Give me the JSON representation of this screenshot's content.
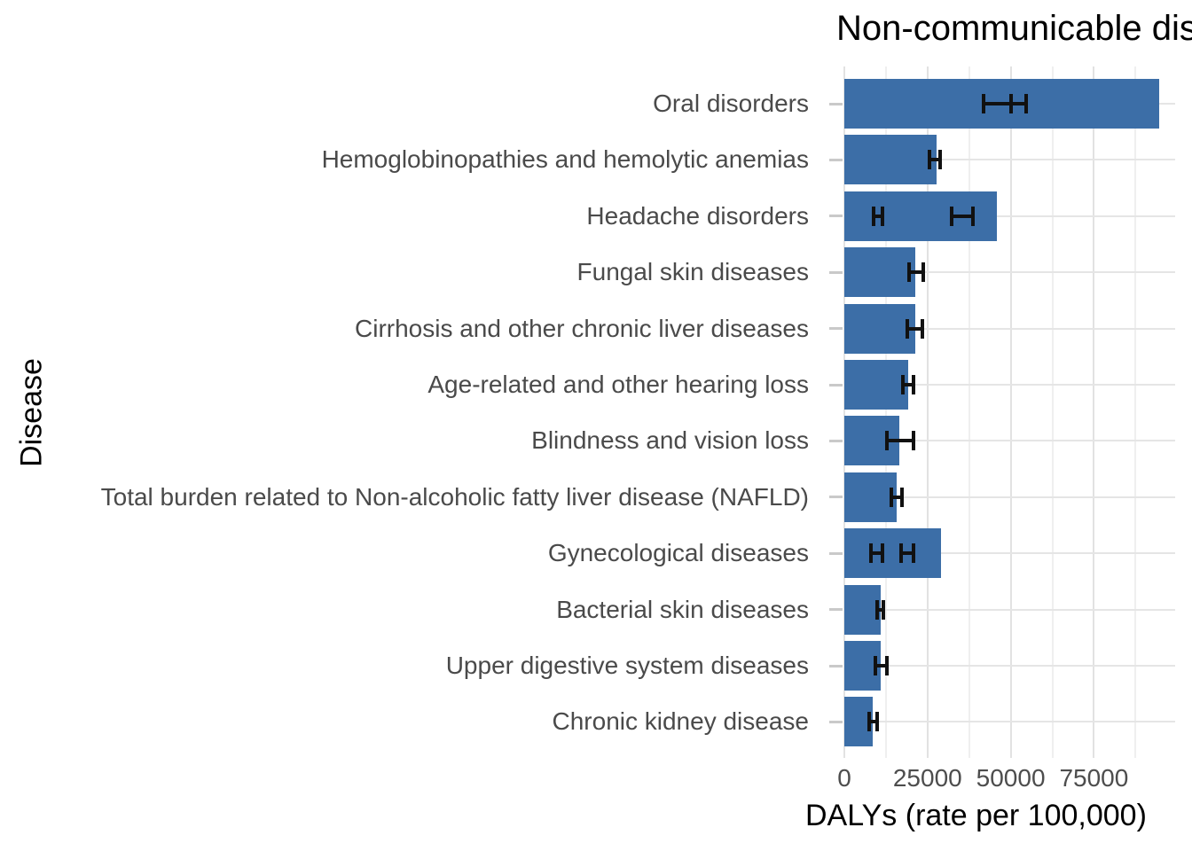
{
  "title": "Non-communicable diseases",
  "axes": {
    "x_label": "DALYs (rate per 100,000)",
    "y_label": "Disease",
    "x_tick_labels": [
      "0",
      "25000",
      "50000",
      "75000"
    ]
  },
  "chart_data": {
    "type": "bar",
    "orientation": "horizontal",
    "title": "Non-communicable diseases",
    "xlabel": "DALYs (rate per 100,000)",
    "ylabel": "Disease",
    "xlim": [
      0,
      99400
    ],
    "x_major_ticks": [
      0,
      25000,
      50000,
      75000
    ],
    "x_minor_ticks": [
      12500,
      37500,
      62500,
      87500
    ],
    "grid": true,
    "legend": false,
    "categories": [
      "Oral disorders",
      "Hemoglobinopathies and hemolytic anemias",
      "Headache disorders",
      "Fungal skin diseases",
      "Cirrhosis and other chronic liver diseases",
      "Age-related and other hearing loss",
      "Blindness and vision loss",
      "Total burden related to Non-alcoholic fatty liver disease (NAFLD)",
      "Gynecological diseases",
      "Bacterial skin diseases",
      "Upper digestive system diseases",
      "Chronic kidney disease"
    ],
    "values": [
      94500,
      27700,
      45800,
      21400,
      21300,
      19300,
      16500,
      15700,
      29000,
      11000,
      11000,
      8600
    ],
    "error_bars": [
      [
        [
          41700,
          50200
        ],
        [
          50200,
          54500
        ]
      ],
      [
        [
          25500,
          28700
        ]
      ],
      [
        [
          8900,
          11400
        ],
        [
          32100,
          38500
        ]
      ],
      [
        [
          19400,
          23800
        ]
      ],
      [
        [
          19000,
          23400
        ]
      ],
      [
        [
          17600,
          20700
        ]
      ],
      [
        [
          12800,
          20700
        ]
      ],
      [
        [
          14100,
          17300
        ]
      ],
      [
        [
          7900,
          11400
        ],
        [
          17000,
          20900
        ]
      ],
      [
        [
          9900,
          11700
        ]
      ],
      [
        [
          9200,
          12800
        ]
      ],
      [
        [
          7400,
          9900
        ]
      ]
    ],
    "colors": {
      "bar": "#3C6EA7",
      "error_bar": "#111111",
      "grid_major": "#e2e2e2",
      "grid_minor": "#efefef",
      "axis_text": "#4d4d4d",
      "axis_tick": "#c9c9c9",
      "title_text": "#000000"
    }
  }
}
